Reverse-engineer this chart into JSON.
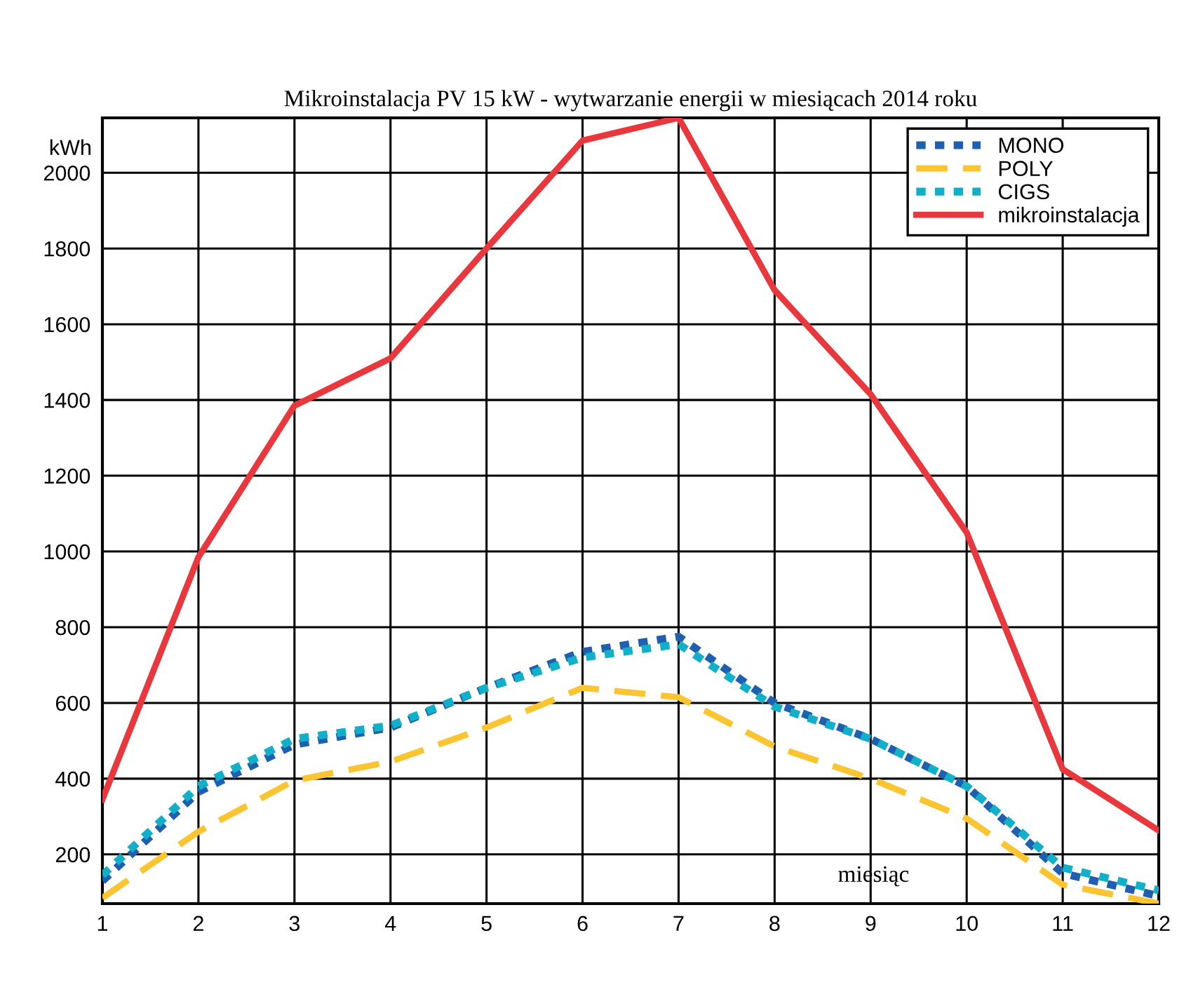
{
  "chart_data": {
    "type": "line",
    "title": "Mikroinstalacja PV 15 kW - wytwarzanie energii w miesiącach 2014 roku",
    "xlabel": "miesiąc",
    "ylabel": "kWh",
    "x": [
      1,
      2,
      3,
      4,
      5,
      6,
      7,
      8,
      9,
      10,
      11,
      12
    ],
    "xlim": [
      1,
      12
    ],
    "xticks": [
      1,
      2,
      3,
      4,
      5,
      6,
      7,
      8,
      9,
      10,
      11,
      12
    ],
    "ylim": [
      70,
      2145
    ],
    "yticks": [
      200,
      400,
      600,
      800,
      1000,
      1200,
      1400,
      1600,
      1800,
      2000
    ],
    "grid": true,
    "legend": "top right",
    "series": [
      {
        "name": "MONO",
        "color": "#1f5fb0",
        "line_style": "dotted",
        "values": [
          130,
          365,
          490,
          535,
          640,
          735,
          775,
          600,
          505,
          380,
          150,
          90
        ]
      },
      {
        "name": "POLY",
        "color": "#fbc531",
        "line_style": "dashed",
        "values": [
          85,
          260,
          395,
          445,
          535,
          640,
          615,
          485,
          400,
          295,
          120,
          70
        ]
      },
      {
        "name": "CIGS",
        "color": "#12b0c8",
        "line_style": "dotted",
        "values": [
          145,
          380,
          505,
          540,
          640,
          720,
          755,
          590,
          505,
          380,
          165,
          105
        ]
      },
      {
        "name": "mikroinstalacja",
        "color": "#e8383d",
        "line_style": "solid",
        "values": [
          345,
          985,
          1385,
          1510,
          1800,
          2085,
          2145,
          1690,
          1415,
          1050,
          425,
          263
        ]
      }
    ]
  }
}
